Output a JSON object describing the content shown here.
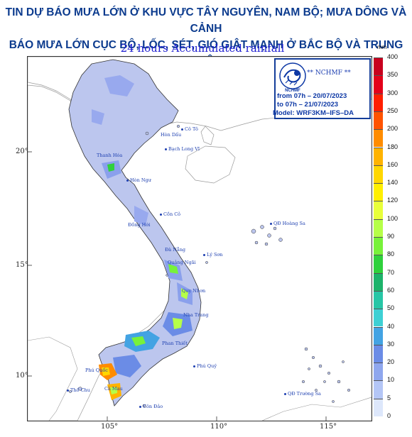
{
  "headline": {
    "line1": "TIN DỰ BÁO MƯA LỚN Ở KHU VỰC TÂY NGUYÊN, NAM BỘ; MƯA DÔNG VÀ CẢNH",
    "line2": "BÁO MƯA LỚN CỤC BỘ, LỐC, SÉT, GIÓ GIẬT MẠNH Ở BẮC BỘ VÀ TRUNG BỘ"
  },
  "map": {
    "title": "24 hours Accumulated rainfall",
    "lat_labels": [
      "20°",
      "15°",
      "10°"
    ],
    "lon_labels": [
      "105°",
      "110°",
      "115°"
    ],
    "places": [
      {
        "name": "Cô Tô"
      },
      {
        "name": "Bạch Long Vĩ"
      },
      {
        "name": "Hòn Dấu"
      },
      {
        "name": "Thanh Hóa"
      },
      {
        "name": "Hòn Ngư"
      },
      {
        "name": "Đồng Hới"
      },
      {
        "name": "Cồn Cỏ"
      },
      {
        "name": "Đà Nẵng"
      },
      {
        "name": "Lý Sơn"
      },
      {
        "name": "Quảng Ngãi"
      },
      {
        "name": "Quy Nhơn"
      },
      {
        "name": "Nha Trang"
      },
      {
        "name": "Phan Thiết"
      },
      {
        "name": "Phú Quý"
      },
      {
        "name": "Cà Mau"
      },
      {
        "name": "Thổ Chu"
      },
      {
        "name": "Côn Đảo"
      },
      {
        "name": "QĐ Hoàng Sa"
      },
      {
        "name": "QĐ Trường Sa"
      },
      {
        "name": "Phú Quốc"
      }
    ]
  },
  "infobox": {
    "logo_label": "NCHMF",
    "org": "** NCHMF **",
    "from": "from 07h – 20/07/2023",
    "to": "to 07h – 21/07/2023",
    "model": "Model: WRF3KM–IFS–DA"
  },
  "legend": {
    "unit": "mm",
    "levels": [
      "400",
      "350",
      "300",
      "250",
      "200",
      "180",
      "160",
      "140",
      "120",
      "100",
      "90",
      "80",
      "70",
      "60",
      "50",
      "40",
      "30",
      "20",
      "10",
      "5",
      "0"
    ],
    "colors": [
      "#c8001e",
      "#e3001a",
      "#ff1f00",
      "#ff5300",
      "#ff8c00",
      "#ffb300",
      "#ffd700",
      "#ffef00",
      "#e8ff3a",
      "#b6ff48",
      "#78f23a",
      "#2fd13c",
      "#1db36a",
      "#27c6a6",
      "#3ed0d4",
      "#43a3e3",
      "#6b8ce6",
      "#8fa7ee",
      "#b4c6f6",
      "#dde7fb"
    ]
  }
}
